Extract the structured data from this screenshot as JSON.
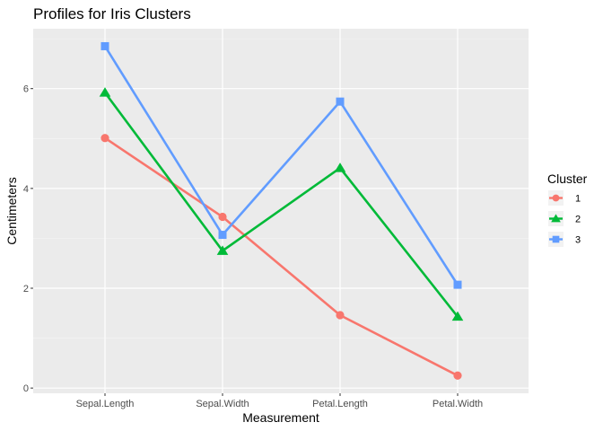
{
  "chart_data": {
    "type": "line",
    "title": "Profiles for Iris Clusters",
    "xlabel": "Measurement",
    "ylabel": "Centimeters",
    "categories": [
      "Sepal.Length",
      "Sepal.Width",
      "Petal.Length",
      "Petal.Width"
    ],
    "ylim": [
      0,
      7
    ],
    "yticks": [
      0,
      2,
      4,
      6
    ],
    "grid": true,
    "legend": {
      "title": "Cluster",
      "placement": "right"
    },
    "series": [
      {
        "name": "1",
        "color": "#F8766D",
        "marker": "circle",
        "values": [
          5.01,
          3.43,
          1.46,
          0.25
        ]
      },
      {
        "name": "2",
        "color": "#00BA38",
        "marker": "triangle",
        "values": [
          5.92,
          2.75,
          4.41,
          1.43
        ]
      },
      {
        "name": "3",
        "color": "#619CFF",
        "marker": "square",
        "values": [
          6.85,
          3.07,
          5.74,
          2.07
        ]
      }
    ]
  }
}
